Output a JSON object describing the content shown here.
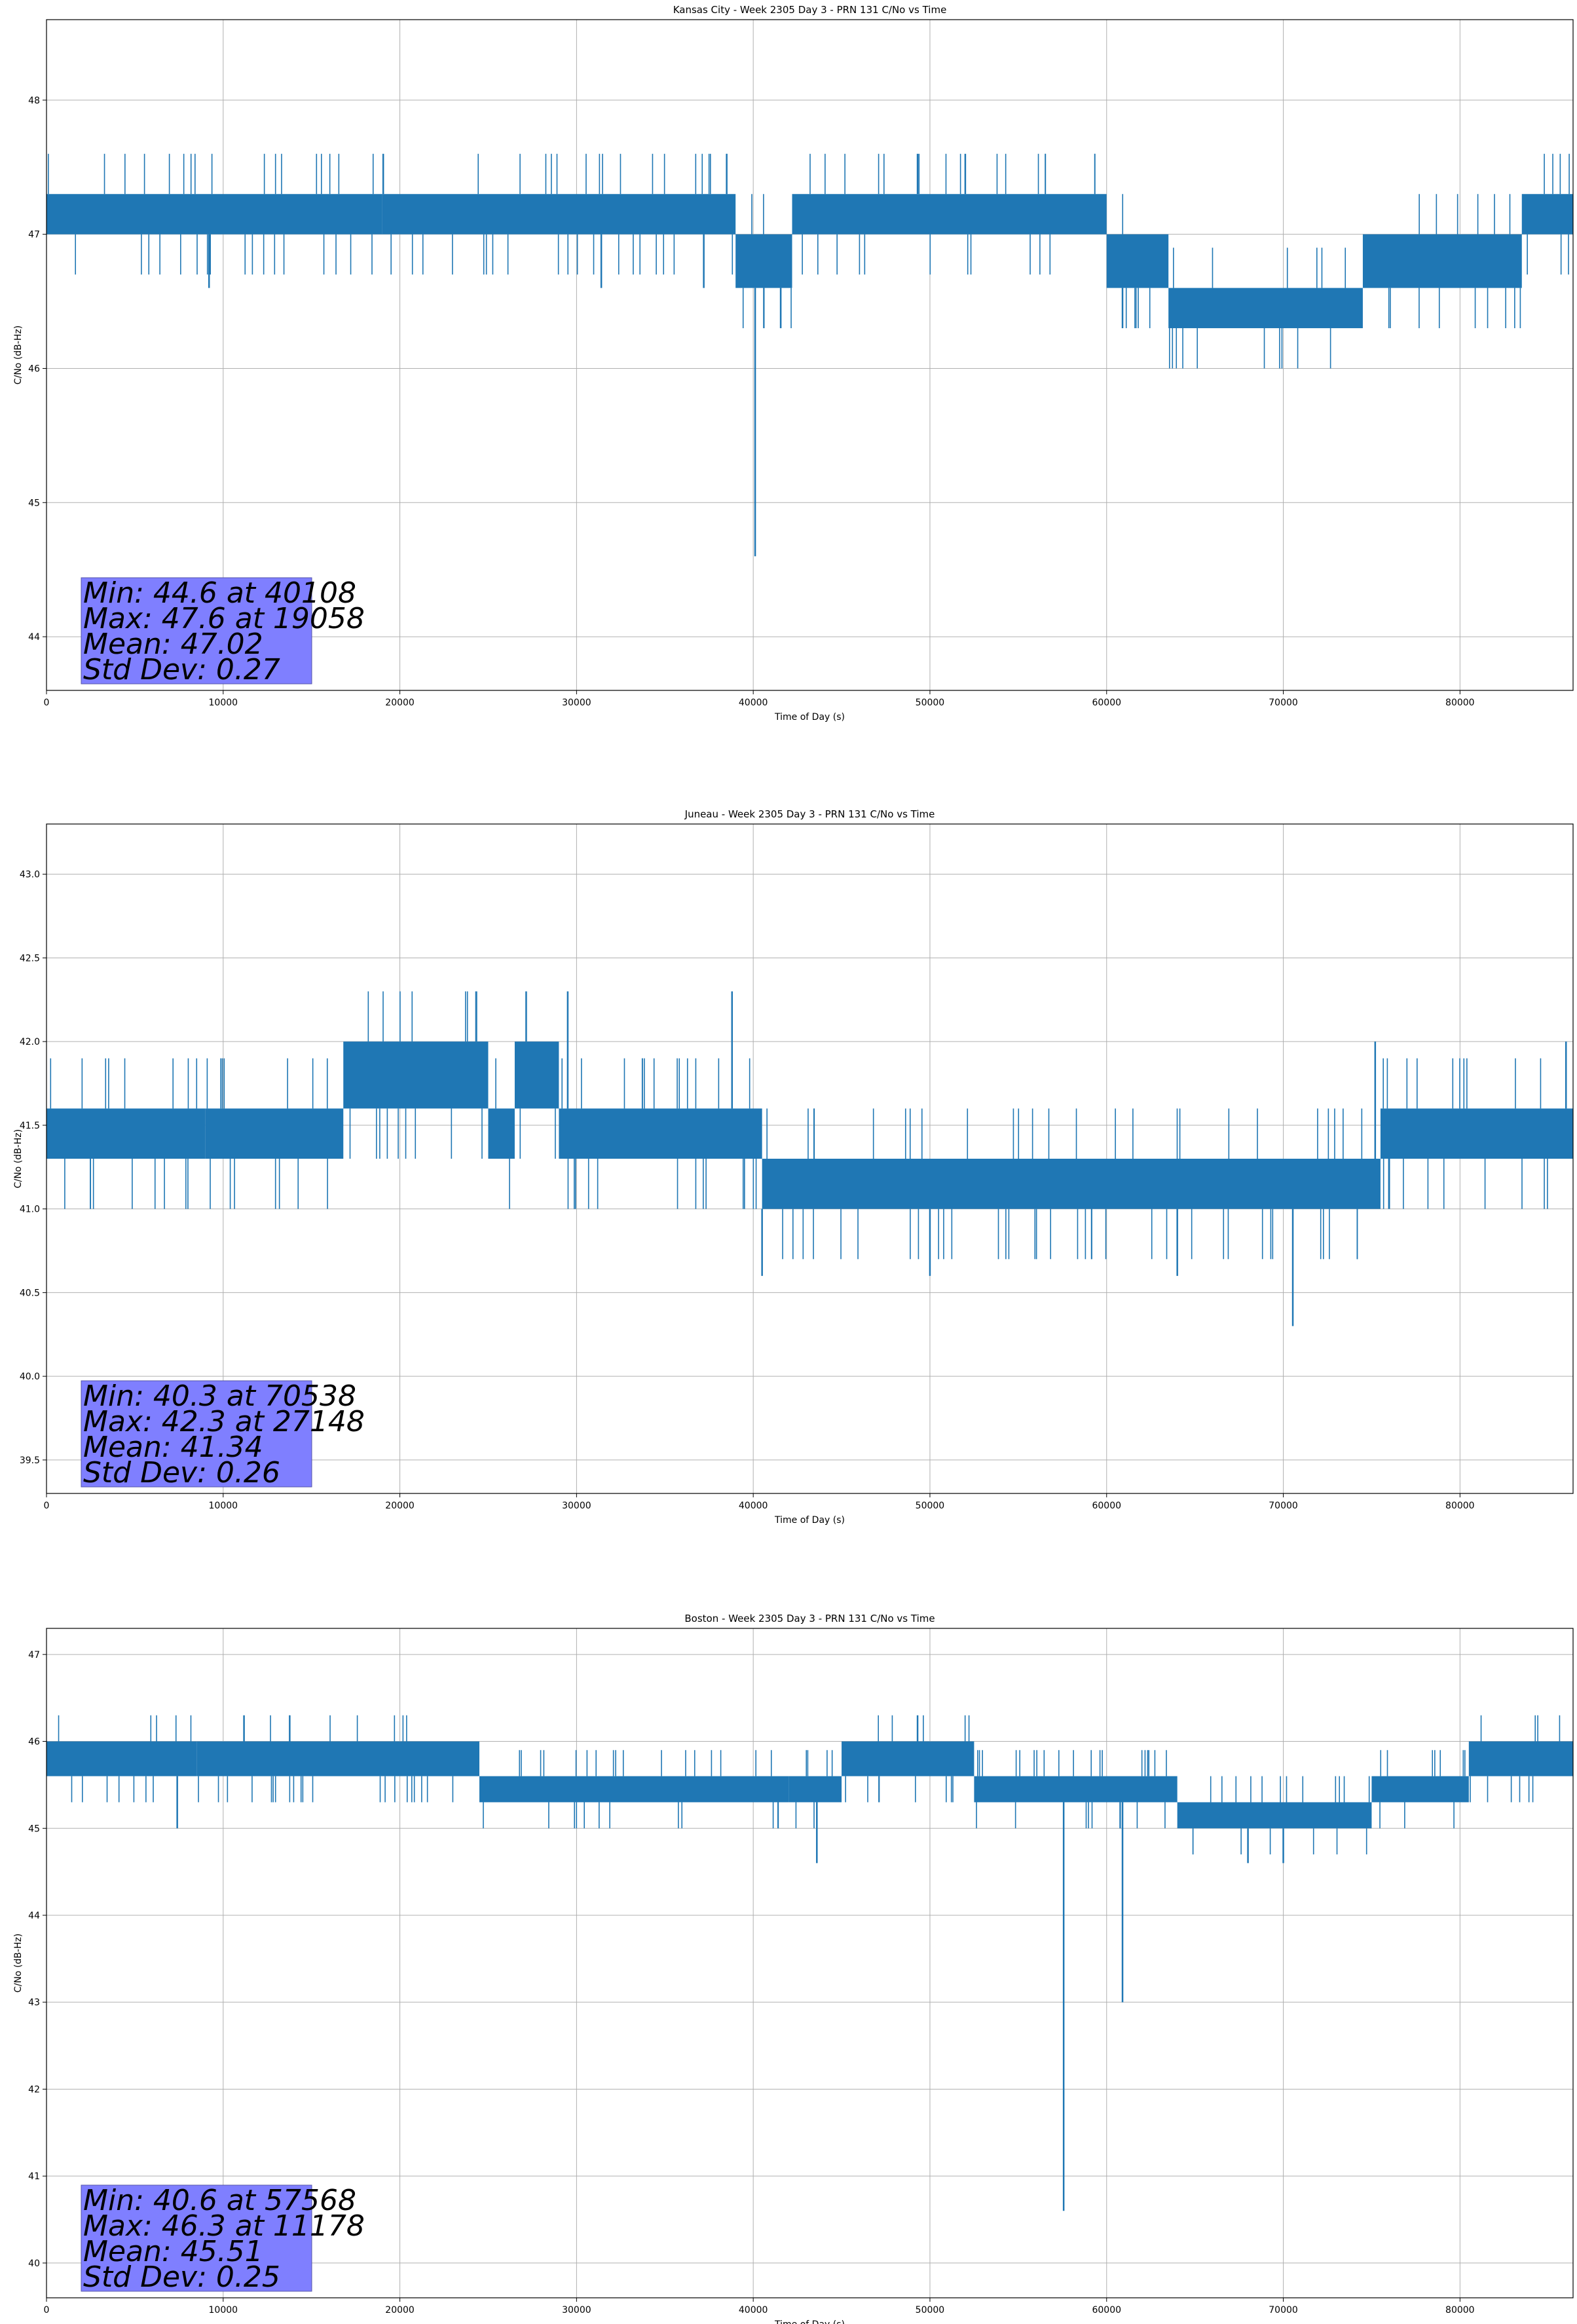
{
  "chart_data": [
    {
      "type": "line",
      "title": "Kansas City - Week 2305 Day 3 - PRN 131 C/No vs Time",
      "xlabel": "Time of Day (s)",
      "ylabel": "C/No (dB-Hz)",
      "xlim": [
        0,
        86400
      ],
      "ylim": [
        43.6,
        48.6
      ],
      "xticks": [
        0,
        10000,
        20000,
        30000,
        40000,
        50000,
        60000,
        70000,
        80000
      ],
      "yticks": [
        44,
        45,
        46,
        47,
        48
      ],
      "ytick_labels": [
        "44",
        "45",
        "46",
        "47",
        "48"
      ],
      "grid": true,
      "color": "#1f77b4",
      "bands": [
        {
          "x0": 0,
          "x1": 19000,
          "lo": 47.0,
          "hi": 47.3
        },
        {
          "x0": 19000,
          "x1": 39000,
          "lo": 47.0,
          "hi": 47.3
        },
        {
          "x0": 39000,
          "x1": 42200,
          "lo": 46.6,
          "hi": 47.0
        },
        {
          "x0": 42200,
          "x1": 60000,
          "lo": 47.0,
          "hi": 47.3
        },
        {
          "x0": 60000,
          "x1": 63500,
          "lo": 46.6,
          "hi": 47.0
        },
        {
          "x0": 63500,
          "x1": 74500,
          "lo": 46.3,
          "hi": 46.6
        },
        {
          "x0": 74500,
          "x1": 83500,
          "lo": 46.6,
          "hi": 47.0
        },
        {
          "x0": 83500,
          "x1": 86400,
          "lo": 47.0,
          "hi": 47.3
        }
      ],
      "spikes": [
        {
          "x": 40108,
          "y": 44.6
        },
        {
          "x": 19058,
          "y": 47.6
        },
        {
          "x": 31400,
          "y": 46.6
        },
        {
          "x": 49300,
          "y": 47.6
        },
        {
          "x": 52000,
          "y": 47.6
        },
        {
          "x": 60900,
          "y": 46.3
        },
        {
          "x": 9200,
          "y": 46.6
        },
        {
          "x": 37200,
          "y": 46.6
        }
      ],
      "stats": {
        "min": "Min: 44.6 at 40108",
        "max": "Max: 47.6 at 19058",
        "mean": "Mean: 47.02",
        "std": "Std Dev: 0.27"
      }
    },
    {
      "type": "line",
      "title": "Juneau - Week 2305 Day 3 - PRN 131 C/No vs Time",
      "xlabel": "Time of Day (s)",
      "ylabel": "C/No (dB-Hz)",
      "xlim": [
        0,
        86400
      ],
      "ylim": [
        39.3,
        43.3
      ],
      "xticks": [
        0,
        10000,
        20000,
        30000,
        40000,
        50000,
        60000,
        70000,
        80000
      ],
      "yticks": [
        39.5,
        40.0,
        40.5,
        41.0,
        41.5,
        42.0,
        42.5,
        43.0
      ],
      "ytick_labels": [
        "39.5",
        "40.0",
        "40.5",
        "41.0",
        "41.5",
        "42.0",
        "42.5",
        "43.0"
      ],
      "grid": true,
      "color": "#1f77b4",
      "bands": [
        {
          "x0": 0,
          "x1": 9000,
          "lo": 41.3,
          "hi": 41.6
        },
        {
          "x0": 9000,
          "x1": 16800,
          "lo": 41.3,
          "hi": 41.6
        },
        {
          "x0": 16800,
          "x1": 25000,
          "lo": 41.6,
          "hi": 42.0
        },
        {
          "x0": 25000,
          "x1": 26500,
          "lo": 41.3,
          "hi": 41.6
        },
        {
          "x0": 26500,
          "x1": 29000,
          "lo": 41.6,
          "hi": 42.0
        },
        {
          "x0": 29000,
          "x1": 40500,
          "lo": 41.3,
          "hi": 41.6
        },
        {
          "x0": 40500,
          "x1": 75500,
          "lo": 41.0,
          "hi": 41.3
        },
        {
          "x0": 75500,
          "x1": 86400,
          "lo": 41.3,
          "hi": 41.6
        }
      ],
      "spikes": [
        {
          "x": 70538,
          "y": 40.3
        },
        {
          "x": 27148,
          "y": 42.3
        },
        {
          "x": 29500,
          "y": 42.3
        },
        {
          "x": 38800,
          "y": 42.3
        },
        {
          "x": 75200,
          "y": 42.0
        },
        {
          "x": 86000,
          "y": 42.0
        },
        {
          "x": 40500,
          "y": 40.6
        },
        {
          "x": 50000,
          "y": 40.6
        },
        {
          "x": 64000,
          "y": 40.6
        }
      ],
      "stats": {
        "min": "Min: 40.3 at 70538",
        "max": "Max: 42.3 at 27148",
        "mean": "Mean: 41.34",
        "std": "Std Dev: 0.26"
      }
    },
    {
      "type": "line",
      "title": "Boston - Week 2305 Day 3 - PRN 131 C/No vs Time",
      "xlabel": "Time of Day (s)",
      "ylabel": "C/No (dB-Hz)",
      "xlim": [
        0,
        86400
      ],
      "ylim": [
        39.6,
        47.3
      ],
      "xticks": [
        0,
        10000,
        20000,
        30000,
        40000,
        50000,
        60000,
        70000,
        80000
      ],
      "yticks": [
        40,
        41,
        42,
        43,
        44,
        45,
        46,
        47
      ],
      "ytick_labels": [
        "40",
        "41",
        "42",
        "43",
        "44",
        "45",
        "46",
        "47"
      ],
      "grid": true,
      "color": "#1f77b4",
      "bands": [
        {
          "x0": 0,
          "x1": 8500,
          "lo": 45.6,
          "hi": 46.0
        },
        {
          "x0": 8500,
          "x1": 24500,
          "lo": 45.6,
          "hi": 46.0
        },
        {
          "x0": 24500,
          "x1": 42000,
          "lo": 45.3,
          "hi": 45.6
        },
        {
          "x0": 42000,
          "x1": 45000,
          "lo": 45.3,
          "hi": 45.6
        },
        {
          "x0": 45000,
          "x1": 52500,
          "lo": 45.6,
          "hi": 46.0
        },
        {
          "x0": 52500,
          "x1": 64000,
          "lo": 45.3,
          "hi": 45.6
        },
        {
          "x0": 64000,
          "x1": 75000,
          "lo": 45.0,
          "hi": 45.3
        },
        {
          "x0": 75000,
          "x1": 80500,
          "lo": 45.3,
          "hi": 45.6
        },
        {
          "x0": 80500,
          "x1": 86400,
          "lo": 45.6,
          "hi": 46.0
        }
      ],
      "spikes": [
        {
          "x": 57568,
          "y": 40.6
        },
        {
          "x": 60900,
          "y": 43.0
        },
        {
          "x": 11178,
          "y": 46.3
        },
        {
          "x": 49300,
          "y": 46.3
        },
        {
          "x": 43600,
          "y": 44.6
        },
        {
          "x": 7400,
          "y": 45.0
        },
        {
          "x": 68000,
          "y": 44.6
        },
        {
          "x": 70000,
          "y": 44.6
        }
      ],
      "stats": {
        "min": "Min: 40.6 at 57568",
        "max": "Max: 46.3 at 11178",
        "mean": "Mean: 45.51",
        "std": "Std Dev: 0.25"
      }
    }
  ]
}
